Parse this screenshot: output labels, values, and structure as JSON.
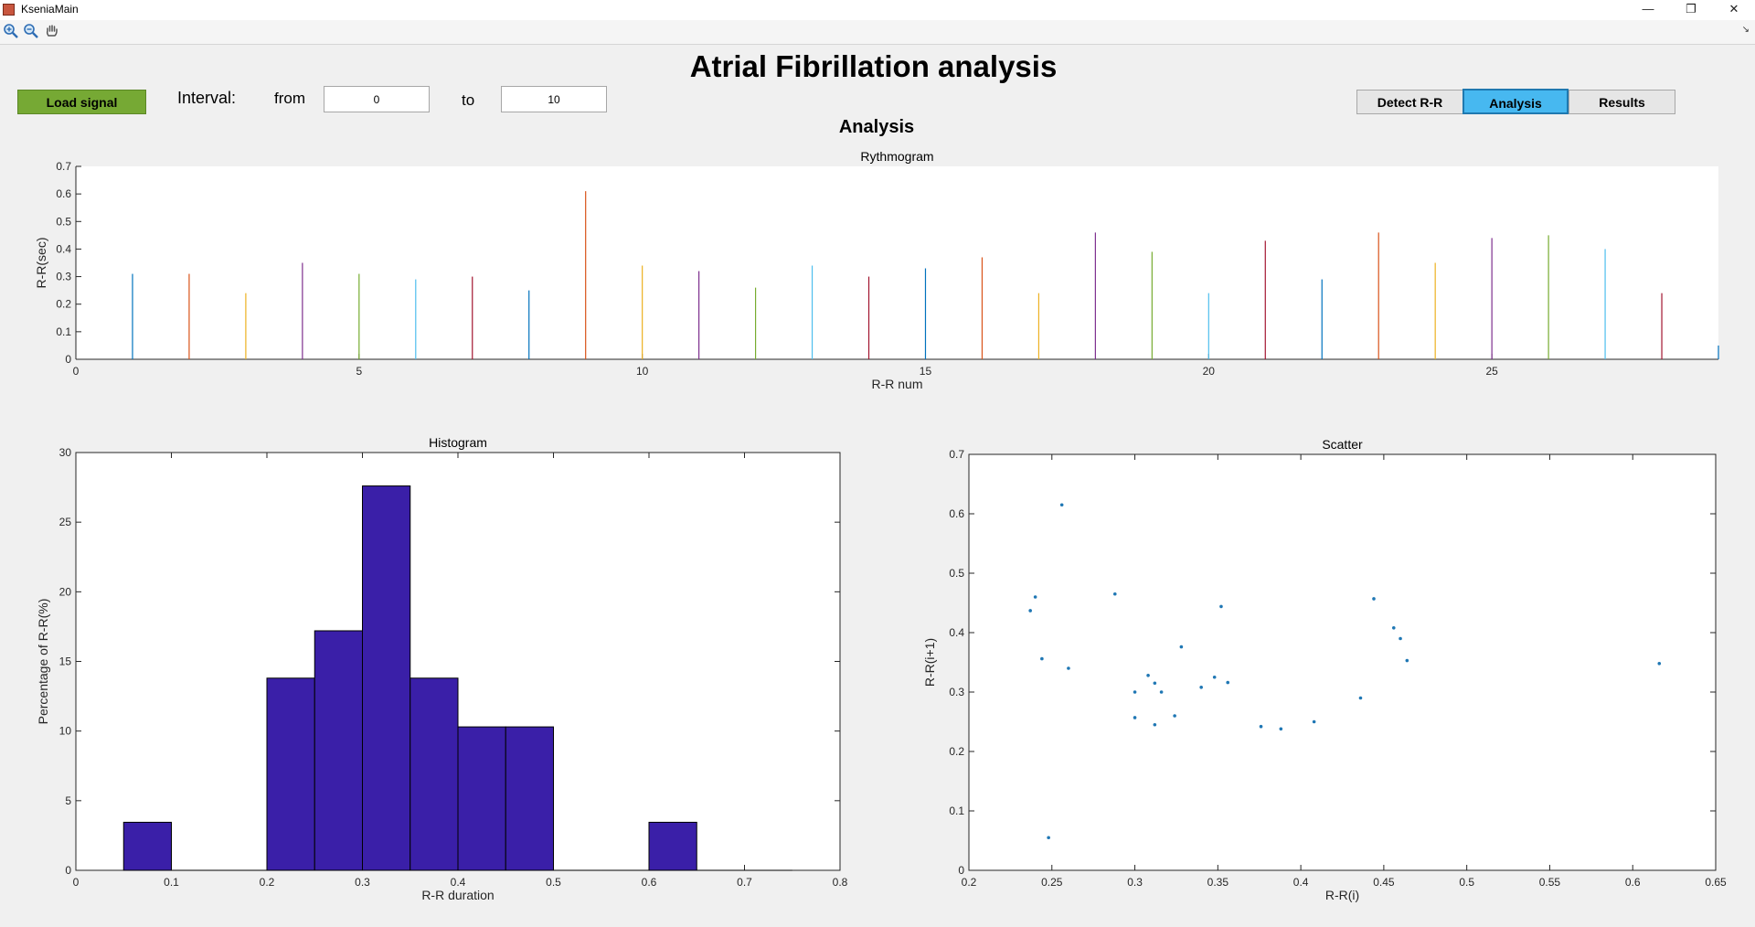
{
  "window": {
    "title": "KseniaMain",
    "minimize_glyph": "—",
    "maximize_glyph": "❐",
    "close_glyph": "✕"
  },
  "toolbar": {
    "items": [
      "zoom-in-icon",
      "zoom-out-icon",
      "pan-hand-icon"
    ],
    "menu_glyph": "↘"
  },
  "header": {
    "title": "Atrial Fibrillation analysis"
  },
  "controls": {
    "load_label": "Load signal",
    "interval_label": "Interval:",
    "from_label": "from",
    "from_value": "0",
    "to_label": "to",
    "to_value": "10",
    "detect_label": "Detect R-R",
    "analysis_label": "Analysis",
    "results_label": "Results"
  },
  "section_title": "Analysis",
  "colors": {
    "accent_green": "#76a934",
    "selected_tab": "#47b8f0",
    "histogram_bar": "#3a1fa8",
    "scatter_dot": "#1f77b4"
  },
  "chart_data": [
    {
      "type": "bar",
      "title": "Rythmogram",
      "xlabel": "R-R num",
      "ylabel": "R-R(sec)",
      "xlim": [
        0,
        29
      ],
      "ylim": [
        0,
        0.7
      ],
      "xticks": [
        0,
        5,
        10,
        15,
        20,
        25
      ],
      "yticks": [
        0,
        0.1,
        0.2,
        0.3,
        0.4,
        0.5,
        0.6,
        0.7
      ],
      "x": [
        1,
        2,
        3,
        4,
        5,
        6,
        7,
        8,
        9,
        10,
        11,
        12,
        13,
        14,
        15,
        16,
        17,
        18,
        19,
        20,
        21,
        22,
        23,
        24,
        25,
        26,
        27,
        28,
        29
      ],
      "values": [
        0.31,
        0.31,
        0.24,
        0.35,
        0.31,
        0.29,
        0.3,
        0.25,
        0.61,
        0.34,
        0.32,
        0.26,
        0.34,
        0.3,
        0.33,
        0.37,
        0.24,
        0.46,
        0.39,
        0.24,
        0.43,
        0.29,
        0.46,
        0.35,
        0.44,
        0.45,
        0.4,
        0.24,
        0.05
      ],
      "series_colors": [
        "#0072bd",
        "#d95319",
        "#edb120",
        "#7e2f8e",
        "#77ac30",
        "#4dbeee",
        "#a2142f"
      ]
    },
    {
      "type": "bar",
      "title": "Histogram",
      "xlabel": "R-R duration",
      "ylabel": "Percentage of R-R(%)",
      "xlim": [
        0,
        0.8
      ],
      "ylim": [
        0,
        30
      ],
      "xticks": [
        0,
        0.1,
        0.2,
        0.3,
        0.4,
        0.5,
        0.6,
        0.7,
        0.8
      ],
      "yticks": [
        0,
        5,
        10,
        15,
        20,
        25,
        30
      ],
      "bin_width": 0.05,
      "bin_starts": [
        0.05,
        0.1,
        0.15,
        0.2,
        0.25,
        0.3,
        0.35,
        0.4,
        0.45,
        0.5,
        0.55,
        0.6,
        0.65,
        0.7
      ],
      "values": [
        3.45,
        0,
        0,
        13.8,
        17.2,
        27.6,
        13.8,
        10.3,
        10.3,
        0,
        0,
        3.45,
        0,
        0
      ]
    },
    {
      "type": "scatter",
      "title": "Scatter",
      "xlabel": "R-R(i)",
      "ylabel": "R-R(i+1)",
      "xlim": [
        0.2,
        0.65
      ],
      "ylim": [
        0,
        0.7
      ],
      "xticks": [
        0.2,
        0.25,
        0.3,
        0.35,
        0.4,
        0.45,
        0.5,
        0.55,
        0.6,
        0.65
      ],
      "yticks": [
        0,
        0.1,
        0.2,
        0.3,
        0.4,
        0.5,
        0.6,
        0.7
      ],
      "points": [
        [
          0.237,
          0.437
        ],
        [
          0.24,
          0.46
        ],
        [
          0.244,
          0.356
        ],
        [
          0.248,
          0.055
        ],
        [
          0.256,
          0.615
        ],
        [
          0.26,
          0.34
        ],
        [
          0.288,
          0.465
        ],
        [
          0.3,
          0.3
        ],
        [
          0.3,
          0.257
        ],
        [
          0.308,
          0.328
        ],
        [
          0.312,
          0.315
        ],
        [
          0.316,
          0.3
        ],
        [
          0.312,
          0.245
        ],
        [
          0.324,
          0.26
        ],
        [
          0.328,
          0.376
        ],
        [
          0.34,
          0.308
        ],
        [
          0.348,
          0.325
        ],
        [
          0.352,
          0.444
        ],
        [
          0.356,
          0.316
        ],
        [
          0.376,
          0.242
        ],
        [
          0.388,
          0.238
        ],
        [
          0.408,
          0.25
        ],
        [
          0.436,
          0.29
        ],
        [
          0.444,
          0.457
        ],
        [
          0.456,
          0.408
        ],
        [
          0.46,
          0.39
        ],
        [
          0.464,
          0.353
        ],
        [
          0.616,
          0.348
        ]
      ]
    }
  ]
}
